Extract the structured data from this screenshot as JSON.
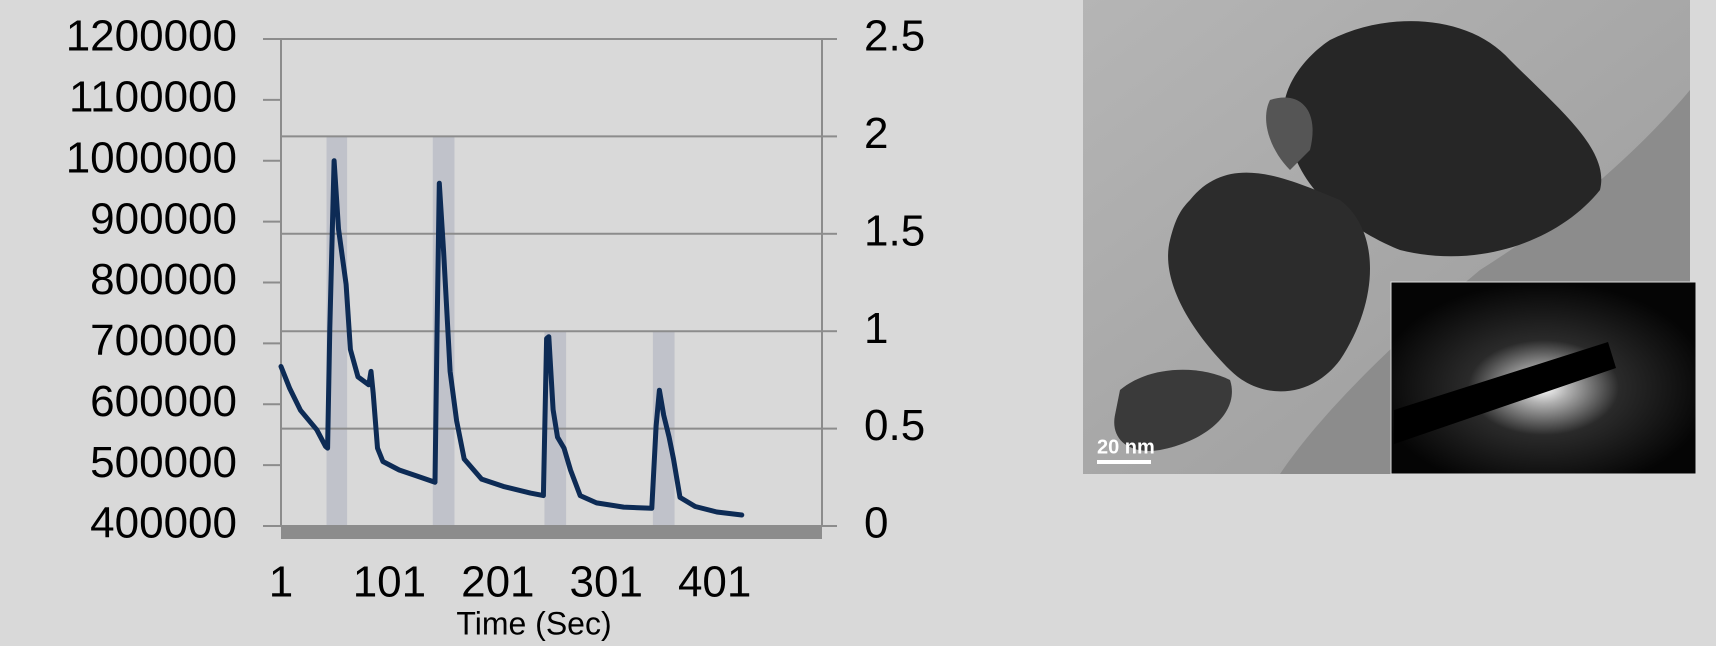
{
  "chart_data": {
    "type": "line",
    "x_label": "Time (Sec)",
    "xlim": [
      1,
      500
    ],
    "xticks": [
      1,
      101,
      201,
      301,
      401
    ],
    "ylim": [
      400000,
      1200000
    ],
    "yticks": [
      400000,
      500000,
      600000,
      700000,
      800000,
      900000,
      1000000,
      1100000,
      1200000
    ],
    "y2lim": [
      0,
      2.5
    ],
    "y2ticks": [
      0,
      0.5,
      1,
      1.5,
      2,
      2.5
    ],
    "grid": true,
    "series": [
      {
        "color": "#0d2b55",
        "x": [
          1,
          9,
          19,
          34,
          42,
          44,
          46,
          50,
          54,
          61,
          65,
          72,
          82,
          84,
          86,
          90,
          95,
          110,
          125,
          143,
          145,
          147,
          151,
          157,
          163,
          170,
          186,
          206,
          231,
          243,
          246,
          248,
          252,
          256,
          262,
          268,
          277,
          292,
          317,
          343,
          347,
          350,
          354,
          359,
          363,
          369,
          383,
          403,
          426
        ],
        "values": [
          662000,
          626000,
          590000,
          558000,
          531000,
          528000,
          725000,
          1000000,
          888000,
          797000,
          690000,
          645000,
          632000,
          654000,
          618000,
          528000,
          506000,
          492000,
          483000,
          472000,
          725000,
          963000,
          851000,
          654000,
          573000,
          510000,
          477000,
          465000,
          454000,
          450000,
          708000,
          711000,
          591000,
          546000,
          528000,
          492000,
          450000,
          438000,
          431000,
          429000,
          564000,
          623000,
          582000,
          546000,
          510000,
          447000,
          432000,
          423000,
          418000
        ]
      }
    ],
    "y2_bands": {
      "axis": "y2",
      "color": "#b9bcc6",
      "x_start": [
        43,
        141,
        244,
        344
      ],
      "x_end": [
        62,
        161,
        264,
        364
      ],
      "values": [
        2,
        2,
        1,
        1
      ]
    }
  },
  "image": {
    "scale_label": "20 nm"
  }
}
